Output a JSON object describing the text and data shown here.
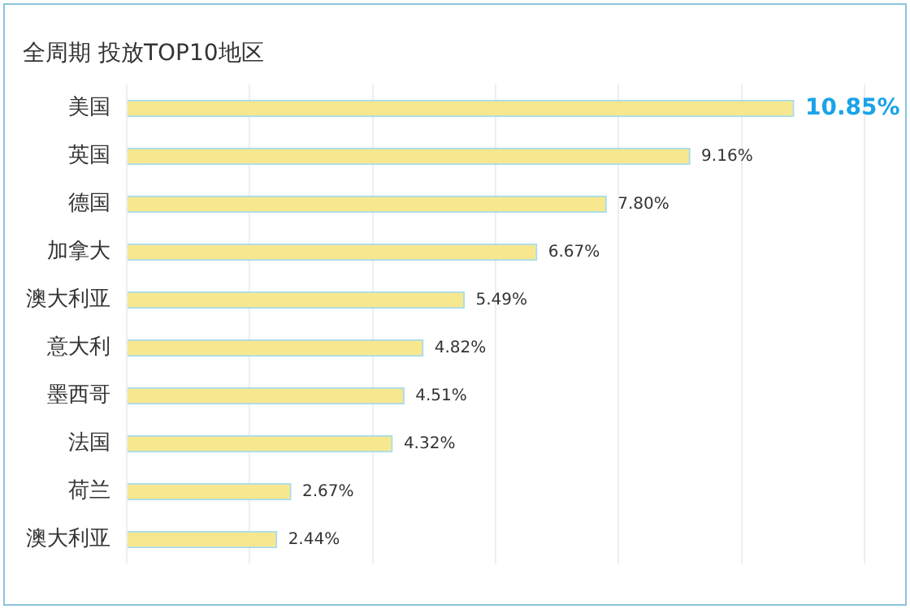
{
  "chart_data": {
    "type": "bar",
    "orientation": "horizontal",
    "title": "全周期 投放TOP10地区",
    "categories": [
      "美国",
      "英国",
      "德国",
      "加拿大",
      "澳大利亚",
      "意大利",
      "墨西哥",
      "法国",
      "荷兰",
      "澳大利亚"
    ],
    "values": [
      10.85,
      9.16,
      7.8,
      6.67,
      5.49,
      4.82,
      4.51,
      4.32,
      2.67,
      2.44
    ],
    "value_labels": [
      "10.85%",
      "9.16%",
      "7.80%",
      "6.67%",
      "5.49%",
      "4.82%",
      "4.51%",
      "4.32%",
      "2.67%",
      "2.44%"
    ],
    "color": "#f7e88f",
    "xlim": [
      0,
      12
    ],
    "xticks": [
      {
        "value": 0,
        "label": null
      },
      {
        "value": 2,
        "label": null
      },
      {
        "value": 4,
        "label": null
      },
      {
        "value": 6,
        "label": null
      },
      {
        "value": 8,
        "label": null
      },
      {
        "value": 10,
        "label": null
      },
      {
        "value": 12,
        "label": null
      }
    ],
    "tick_labels": "y",
    "grid": "x",
    "legend": false
  }
}
